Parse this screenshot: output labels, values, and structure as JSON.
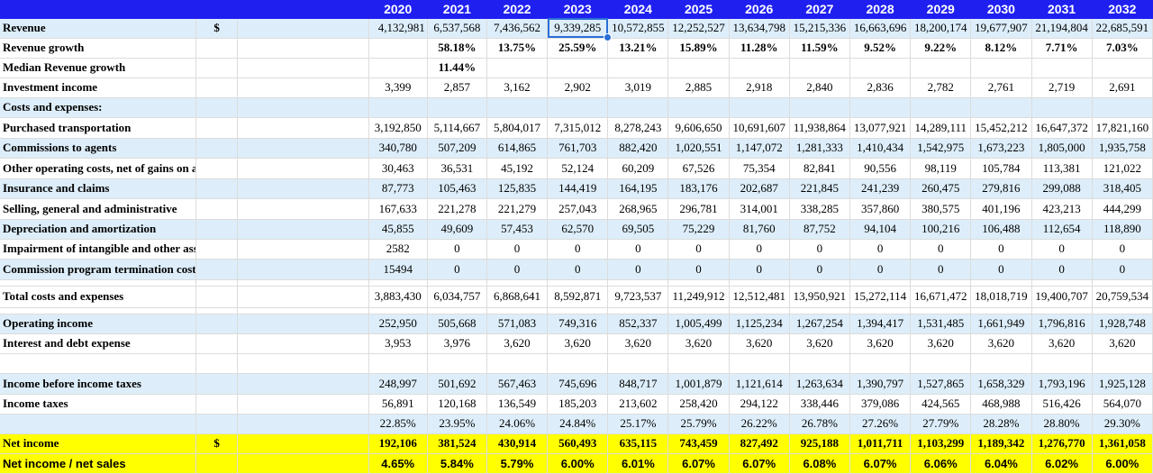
{
  "header_row": {
    "years": [
      "2020",
      "2021",
      "2022",
      "2023",
      "2024",
      "2025",
      "2026",
      "2027",
      "2028",
      "2029",
      "2030",
      "2031",
      "2032"
    ]
  },
  "selection": {
    "row": 0,
    "col": 3
  },
  "rows": [
    {
      "label": "Revenue",
      "currency": "$",
      "style": "blue",
      "align": "num",
      "values": [
        "4,132,981",
        "6,537,568",
        "7,436,562",
        "9,339,285",
        "10,572,855",
        "12,252,527",
        "13,634,798",
        "15,215,336",
        "16,663,696",
        "18,200,174",
        "19,677,907",
        "21,194,804",
        "22,685,591"
      ]
    },
    {
      "label": "Revenue growth",
      "currency": "",
      "style": "white",
      "align": "ctr bold",
      "values": [
        "",
        "58.18%",
        "13.75%",
        "25.59%",
        "13.21%",
        "15.89%",
        "11.28%",
        "11.59%",
        "9.52%",
        "9.22%",
        "8.12%",
        "7.71%",
        "7.03%"
      ]
    },
    {
      "label": "Median Revenue growth",
      "currency": "",
      "style": "white",
      "align": "ctr bold",
      "values": [
        "",
        "11.44%",
        "",
        "",
        "",
        "",
        "",
        "",
        "",
        "",
        "",
        "",
        ""
      ]
    },
    {
      "label": "Investment income",
      "currency": "",
      "style": "white",
      "align": "ctr",
      "values": [
        "3,399",
        "2,857",
        "3,162",
        "2,902",
        "3,019",
        "2,885",
        "2,918",
        "2,840",
        "2,836",
        "2,782",
        "2,761",
        "2,719",
        "2,691"
      ]
    },
    {
      "label": "Costs and expenses:",
      "currency": "",
      "style": "blue",
      "align": "ctr",
      "values": [
        "",
        "",
        "",
        "",
        "",
        "",
        "",
        "",
        "",
        "",
        "",
        "",
        ""
      ]
    },
    {
      "label": "Purchased transportation",
      "currency": "",
      "style": "white",
      "align": "ctr",
      "values": [
        "3,192,850",
        "5,114,667",
        "5,804,017",
        "7,315,012",
        "8,278,243",
        "9,606,650",
        "10,691,607",
        "11,938,864",
        "13,077,921",
        "14,289,111",
        "15,452,212",
        "16,647,372",
        "17,821,160"
      ]
    },
    {
      "label": "Commissions to agents",
      "currency": "",
      "style": "blue",
      "align": "ctr",
      "values": [
        "340,780",
        "507,209",
        "614,865",
        "761,703",
        "882,420",
        "1,020,551",
        "1,147,072",
        "1,281,333",
        "1,410,434",
        "1,542,975",
        "1,673,223",
        "1,805,000",
        "1,935,758"
      ]
    },
    {
      "label": "Other operating costs, net of gains on asset sales/dispositions",
      "currency": "",
      "style": "white",
      "align": "ctr",
      "values": [
        "30,463",
        "36,531",
        "45,192",
        "52,124",
        "60,209",
        "67,526",
        "75,354",
        "82,841",
        "90,556",
        "98,119",
        "105,784",
        "113,381",
        "121,022"
      ]
    },
    {
      "label": "Insurance and claims",
      "currency": "",
      "style": "blue",
      "align": "ctr",
      "values": [
        "87,773",
        "105,463",
        "125,835",
        "144,419",
        "164,195",
        "183,176",
        "202,687",
        "221,845",
        "241,239",
        "260,475",
        "279,816",
        "299,088",
        "318,405"
      ]
    },
    {
      "label": "Selling, general and administrative",
      "currency": "",
      "style": "white",
      "align": "ctr",
      "values": [
        "167,633",
        "221,278",
        "221,279",
        "257,043",
        "268,965",
        "296,781",
        "314,001",
        "338,285",
        "357,860",
        "380,575",
        "401,196",
        "423,213",
        "444,299"
      ]
    },
    {
      "label": "Depreciation and amortization",
      "currency": "",
      "style": "blue",
      "align": "ctr",
      "values": [
        "45,855",
        "49,609",
        "57,453",
        "62,570",
        "69,505",
        "75,229",
        "81,760",
        "87,752",
        "94,104",
        "100,216",
        "106,488",
        "112,654",
        "118,890"
      ]
    },
    {
      "label": "Impairment of intangible and other assets",
      "currency": "",
      "style": "white",
      "align": "ctr",
      "values": [
        "2582",
        "0",
        "0",
        "0",
        "0",
        "0",
        "0",
        "0",
        "0",
        "0",
        "0",
        "0",
        "0"
      ]
    },
    {
      "label": "Commission program termination costs",
      "currency": "",
      "style": "blue",
      "align": "ctr",
      "values": [
        "15494",
        "0",
        "0",
        "0",
        "0",
        "0",
        "0",
        "0",
        "0",
        "0",
        "0",
        "0",
        "0"
      ]
    },
    {
      "label": "",
      "currency": "",
      "style": "white",
      "align": "ctr",
      "short": true,
      "values": [
        "",
        "",
        "",
        "",
        "",
        "",
        "",
        "",
        "",
        "",
        "",
        "",
        ""
      ]
    },
    {
      "label": "Total costs and expenses",
      "currency": "",
      "style": "white",
      "align": "ctr",
      "values": [
        "3,883,430",
        "6,034,757",
        "6,868,641",
        "8,592,871",
        "9,723,537",
        "11,249,912",
        "12,512,481",
        "13,950,921",
        "15,272,114",
        "16,671,472",
        "18,018,719",
        "19,400,707",
        "20,759,534"
      ]
    },
    {
      "label": "",
      "currency": "",
      "style": "white",
      "align": "ctr",
      "short": true,
      "values": [
        "",
        "",
        "",
        "",
        "",
        "",
        "",
        "",
        "",
        "",
        "",
        "",
        ""
      ]
    },
    {
      "label": "Operating income",
      "currency": "",
      "style": "blue",
      "align": "ctr",
      "values": [
        "252,950",
        "505,668",
        "571,083",
        "749,316",
        "852,337",
        "1,005,499",
        "1,125,234",
        "1,267,254",
        "1,394,417",
        "1,531,485",
        "1,661,949",
        "1,796,816",
        "1,928,748"
      ]
    },
    {
      "label": "Interest and debt expense",
      "currency": "",
      "style": "white",
      "align": "ctr",
      "values": [
        "3,953",
        "3,976",
        "3,620",
        "3,620",
        "3,620",
        "3,620",
        "3,620",
        "3,620",
        "3,620",
        "3,620",
        "3,620",
        "3,620",
        "3,620"
      ]
    },
    {
      "label": "",
      "currency": "",
      "style": "white",
      "align": "ctr",
      "values": [
        "",
        "",
        "",
        "",
        "",
        "",
        "",
        "",
        "",
        "",
        "",
        "",
        ""
      ]
    },
    {
      "label": "Income before income taxes",
      "currency": "",
      "style": "blue",
      "align": "ctr",
      "values": [
        "248,997",
        "501,692",
        "567,463",
        "745,696",
        "848,717",
        "1,001,879",
        "1,121,614",
        "1,263,634",
        "1,390,797",
        "1,527,865",
        "1,658,329",
        "1,793,196",
        "1,925,128"
      ]
    },
    {
      "label": "Income taxes",
      "currency": "",
      "style": "white",
      "align": "ctr",
      "values": [
        "56,891",
        "120,168",
        "136,549",
        "185,203",
        "213,602",
        "258,420",
        "294,122",
        "338,446",
        "379,086",
        "424,565",
        "468,988",
        "516,426",
        "564,070"
      ]
    },
    {
      "label": "",
      "currency": "",
      "style": "blue",
      "align": "ctr",
      "values": [
        "22.85%",
        "23.95%",
        "24.06%",
        "24.84%",
        "25.17%",
        "25.79%",
        "26.22%",
        "26.78%",
        "27.26%",
        "27.79%",
        "28.28%",
        "28.80%",
        "29.30%"
      ]
    },
    {
      "label": "Net income",
      "currency": "$",
      "style": "yellow",
      "align": "ctr",
      "values": [
        "192,106",
        "381,524",
        "430,914",
        "560,493",
        "635,115",
        "743,459",
        "827,492",
        "925,188",
        "1,011,711",
        "1,103,299",
        "1,189,342",
        "1,276,770",
        "1,361,058"
      ]
    },
    {
      "label": "Net income / net sales",
      "currency": "",
      "style": "yellow sans",
      "align": "ctr",
      "values": [
        "4.65%",
        "5.84%",
        "5.79%",
        "6.00%",
        "6.01%",
        "6.07%",
        "6.07%",
        "6.08%",
        "6.07%",
        "6.06%",
        "6.04%",
        "6.02%",
        "6.00%"
      ]
    }
  ]
}
